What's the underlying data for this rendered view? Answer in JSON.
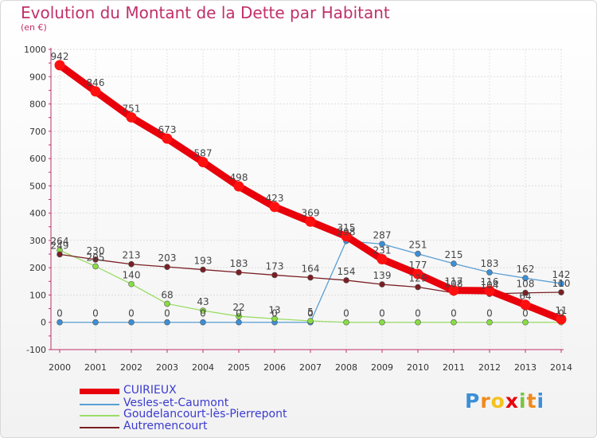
{
  "chart_data": {
    "type": "line",
    "title": "Evolution du Montant de la Dette par Habitant",
    "unit": "(en €)",
    "xlabel": "",
    "ylabel": "",
    "ylim": [
      -100,
      1000
    ],
    "y_ticks": [
      -100,
      0,
      100,
      200,
      300,
      400,
      500,
      600,
      700,
      800,
      900,
      1000
    ],
    "grid": true,
    "categories": [
      "2000",
      "2001",
      "2002",
      "2003",
      "2004",
      "2005",
      "2006",
      "2007",
      "2008",
      "2009",
      "2010",
      "2011",
      "2012",
      "2013",
      "2014"
    ],
    "series": [
      {
        "name": "CUIRIEUX",
        "color": "#e8000b",
        "values": [
          942,
          846,
          751,
          673,
          587,
          498,
          423,
          369,
          315,
          231,
          177,
          117,
          116,
          64,
          11
        ]
      },
      {
        "name": "Vesles-et-Caumont",
        "color": "#5a9fd4",
        "values": [
          0,
          0,
          0,
          0,
          0,
          0,
          0,
          0,
          298,
          287,
          251,
          215,
          183,
          162,
          142
        ]
      },
      {
        "name": "Goudelancourt-lès-Pierrepont",
        "color": "#99dd66",
        "values": [
          264,
          205,
          140,
          68,
          43,
          22,
          13,
          5,
          0,
          0,
          0,
          0,
          0,
          0,
          0
        ]
      },
      {
        "name": "Autremencourt",
        "color": "#7a1f24",
        "values": [
          249,
          230,
          213,
          203,
          193,
          183,
          173,
          164,
          154,
          139,
          129,
          108,
          104,
          108,
          110
        ]
      }
    ]
  }
}
